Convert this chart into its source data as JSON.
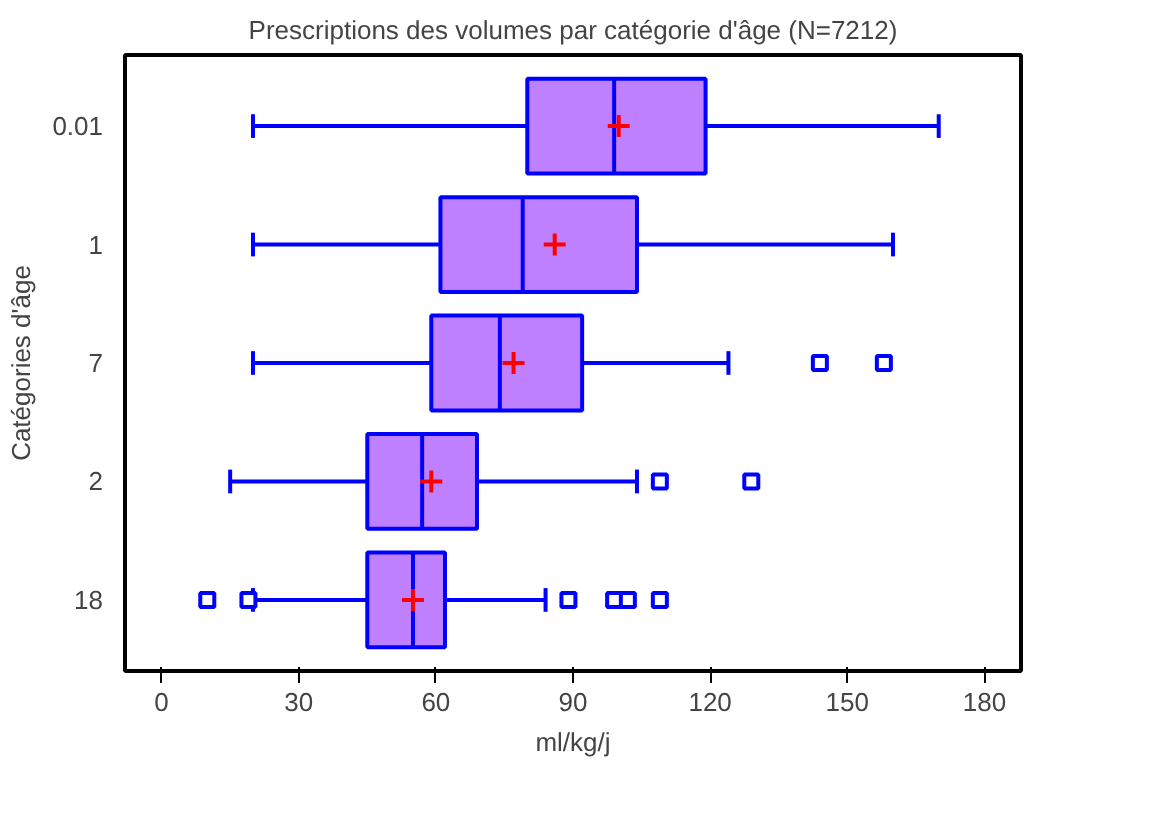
{
  "chart_data": {
    "type": "box",
    "orientation": "horizontal",
    "title": "Prescriptions des volumes par catégorie d'âge (N=7212)",
    "xlabel": "ml/kg/j",
    "ylabel": "Catégories d'âge",
    "categories": [
      "0.01",
      "1",
      "7",
      "2",
      "18"
    ],
    "boxes": [
      {
        "low": 20,
        "q1": 80,
        "median": 99,
        "q3": 119,
        "high": 170,
        "mean": 100
      },
      {
        "low": 20,
        "q1": 61,
        "median": 79,
        "q3": 104,
        "high": 160,
        "mean": 86
      },
      {
        "low": 20,
        "q1": 59,
        "median": 74,
        "q3": 92,
        "high": 124,
        "mean": 77,
        "outliers": [
          144,
          158
        ]
      },
      {
        "low": 15,
        "q1": 45,
        "median": 57,
        "q3": 69,
        "high": 104,
        "mean": 59,
        "outliers": [
          109,
          129
        ]
      },
      {
        "low": 20,
        "q1": 45,
        "median": 55,
        "q3": 62,
        "high": 84,
        "mean": 55,
        "outliers": [
          10,
          19,
          89,
          99,
          102,
          109
        ]
      }
    ],
    "color": "#bf80ff",
    "xlim": [
      -8,
      188
    ],
    "xticks": [
      0,
      30,
      60,
      90,
      120,
      150,
      180
    ],
    "grid": false
  }
}
